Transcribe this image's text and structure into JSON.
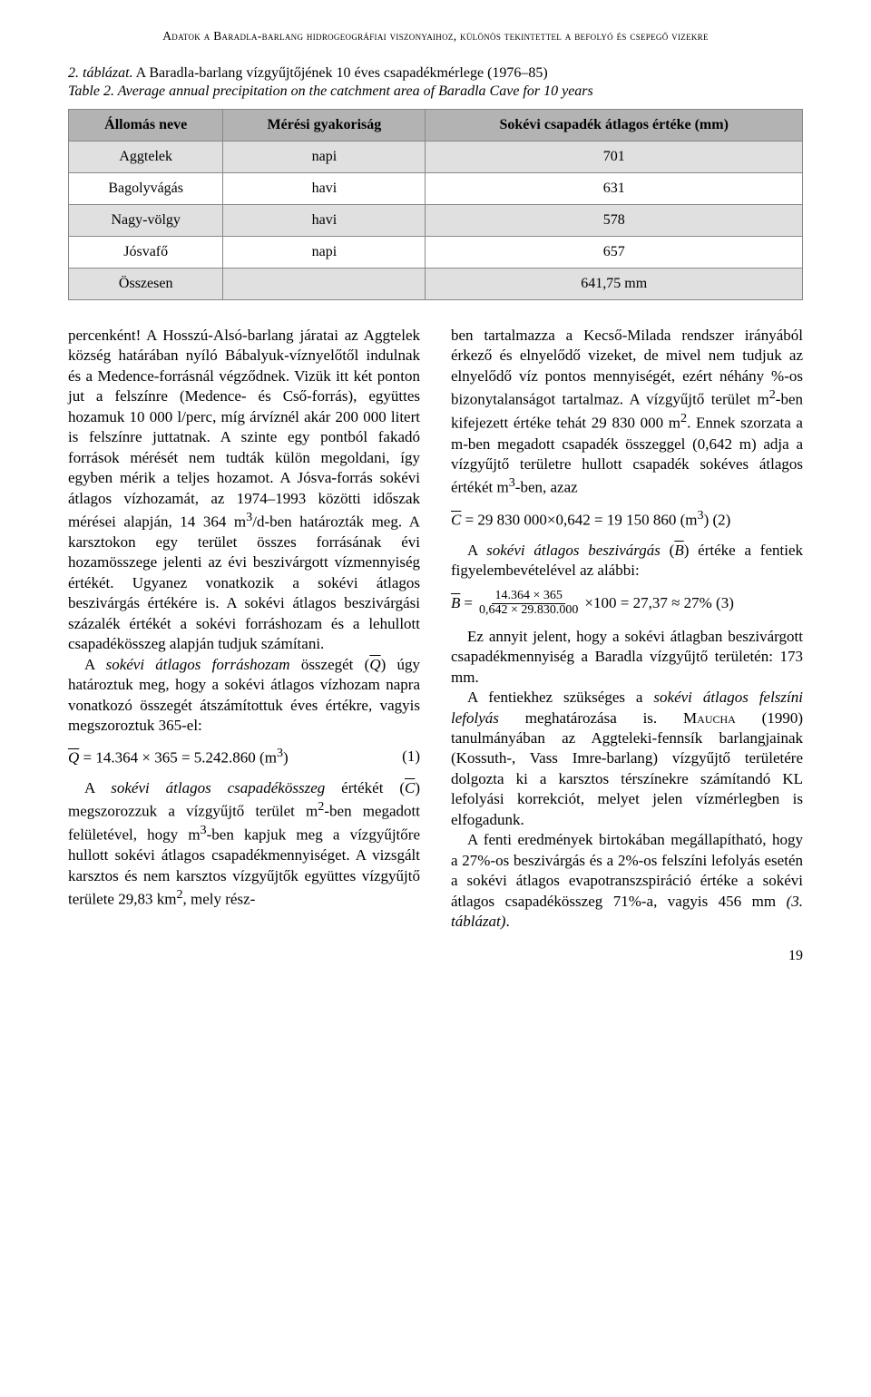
{
  "running_header": "Adatok a Baradla-barlang hidrogeográfiai viszonyaihoz, különös tekintettel a befolyó és csepegő vizekre",
  "table_caption_label": "2. táblázat.",
  "table_caption_text": " A Baradla-barlang vízgyűjtőjének 10 éves csapadékmérlege (1976–85)",
  "table_subcaption_label": "Table 2.",
  "table_subcaption_text": " Average annual precipitation on the catchment area of Baradla Cave for 10 years",
  "table": {
    "columns": [
      "Állomás neve",
      "Mérési gyakoriság",
      "Sokévi csapadék átlagos értéke (mm)"
    ],
    "rows": [
      [
        "Aggtelek",
        "napi",
        "701"
      ],
      [
        "Bagolyvágás",
        "havi",
        "631"
      ],
      [
        "Nagy-völgy",
        "havi",
        "578"
      ],
      [
        "Jósvafő",
        "napi",
        "657"
      ],
      [
        "Összesen",
        "",
        "641,75 mm"
      ]
    ],
    "header_bg": "#b3b3b3",
    "row_odd_bg": "#e0e0e0",
    "row_even_bg": "#ffffff",
    "border_color": "#888888"
  },
  "left": {
    "p1a": "percenként! A Hosszú-Alsó-barlang járatai az Aggtelek község határában nyíló Bábalyuk-víznyelőtől indulnak és a Medence-forrásnál végződnek. Vizük itt két ponton jut a felszínre (Medence- és Cső-forrás), együttes hozamuk 10 000 l/perc, míg árvíznél akár 200 000 litert is felszínre juttatnak. A szinte egy pontból fakadó források mérését nem tudták külön megoldani, így egyben mérik a teljes hozamot. A Jósva-forrás sokévi átlagos vízhozamát, az 1974–1993 közötti időszak mérései alapján, 14 364 m",
    "p1b": "/d-ben határozták meg. A karsztokon egy terület összes forrásának évi hozamösszege jelenti az évi beszivárgott vízmennyiség értékét. Ugyanez vonatkozik a sokévi átlagos beszivárgás értékére is. A sokévi átlagos beszivárgási százalék értékét a sokévi forráshozam és a lehullott csapadékösszeg alapján tudjuk számítani.",
    "p2a": "A ",
    "p2i": "sokévi átlagos forráshozam",
    "p2b": " összegét (",
    "p2c": ") úgy határoztuk meg, hogy a sokévi átlagos vízhozam napra vonatkozó összegét átszámítottuk éves értékre, vagyis megszoroztuk 365-el:",
    "eq1_lhs": "Q",
    "eq1_body": " = 14.364 × 365 = 5.242.860 (m",
    "eq1_sup": "3",
    "eq1_close": ")",
    "eq1_num": "(1)",
    "p3a": "A ",
    "p3i": "sokévi átlagos csapadékösszeg",
    "p3b": " értékét (",
    "p3c": ") megszorozzuk a vízgyűjtő terület m",
    "p3d": "-ben megadott felületével, hogy m",
    "p3e": "-ben kapjuk meg a vízgyűjtőre hullott sokévi átlagos csapadékmennyiséget. A vizsgált karsztos és nem karsztos vízgyűjtők együttes vízgyűjtő területe 29,83 km",
    "p3f": ", mely rész-"
  },
  "right": {
    "p1a": "ben tartalmazza a Kecső-Milada rendszer irányából érkező és elnyelődő vizeket, de mivel nem tudjuk az elnyelődő víz pontos mennyiségét, ezért néhány %-os bizonytalanságot tartalmaz. A vízgyűjtő terület m",
    "p1b": "-ben kifejezett értéke tehát 29 830 000 m",
    "p1c": ". Ennek szorzata a m-ben megadott csapadék összeggel (0,642 m) adja a vízgyűjtő területre hullott csapadék sokéves átlagos értékét m",
    "p1d": "-ben, azaz",
    "eq2_lhs": "C",
    "eq2_body": " = 29 830 000×0,642 = 19 150 860 (m",
    "eq2_sup": "3",
    "eq2_close": ") (2)",
    "p2a": "A ",
    "p2i": "sokévi átlagos beszivárgás",
    "p2b": " (",
    "p2c": ") értéke a fentiek figyelembevételével az alábbi:",
    "eq3_lhs": "B",
    "eq3_eq": " = ",
    "eq3_num": "14.364 × 365",
    "eq3_den": "0,642 × 29.830.000",
    "eq3_tail": " ×100 = 27,37 ≈ 27% (3)",
    "p3": "Ez annyit jelent, hogy a sokévi átlagban beszivárgott csapadékmennyiség a Baradla vízgyűjtő területén: 173 mm.",
    "p4a": "A fentiekhez szükséges a ",
    "p4i": "sokévi átlagos felszíni lefolyás",
    "p4b": " meghatározása is. ",
    "p4sc": "Maucha",
    "p4c": " (1990) tanulmányában az Aggteleki-fennsík barlangjainak (Kossuth-, Vass Imre-barlang) vízgyűjtő területére dolgozta ki a karsztos térszínekre számítandó KL lefolyási korrekciót, melyet jelen vízmérlegben is elfogadunk.",
    "p5a": "A fenti eredmények birtokában megállapítható, hogy a 27%-os beszivárgás és a 2%-os felszíni lefolyás esetén a sokévi átlagos evapotranszspiráció értéke a sokévi átlagos csapadékösszeg 71%-a, vagyis 456 mm ",
    "p5i": "(3. táblázat)",
    "p5b": "."
  },
  "page_number": "19",
  "style": {
    "body_bg": "#ffffff",
    "text_color": "#000000",
    "body_fontsize": 17,
    "header_fontsize": 13.5,
    "table_fontsize": 16,
    "line_height": 1.32
  }
}
